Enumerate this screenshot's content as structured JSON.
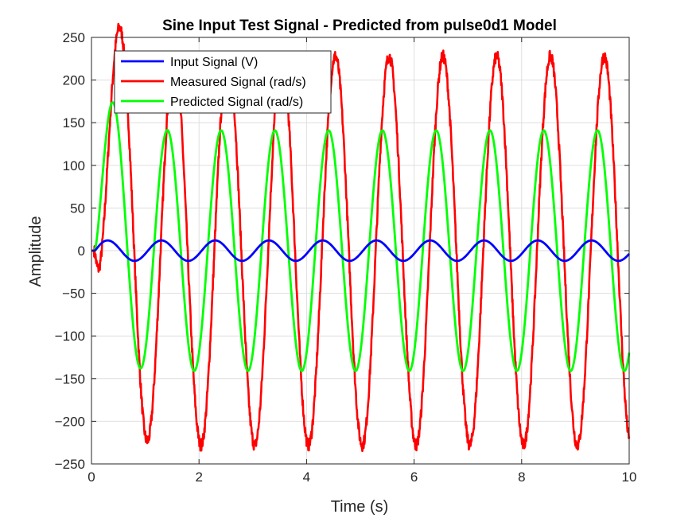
{
  "chart_data": {
    "type": "line",
    "title": "Sine Input Test Signal - Predicted from pulse0d1 Model",
    "xlabel": "Time (s)",
    "ylabel": "Amplitude",
    "xlim": [
      0,
      10
    ],
    "ylim": [
      -250,
      250
    ],
    "xticks": [
      0,
      2,
      4,
      6,
      8,
      10
    ],
    "yticks": [
      -250,
      -200,
      -150,
      -100,
      -50,
      0,
      50,
      100,
      150,
      200,
      250
    ],
    "grid": true,
    "legend_position": "top-left",
    "signal_frequency_hz": 1,
    "series": [
      {
        "name": "Input Signal (V)",
        "color": "#0000ff",
        "amplitude": 12,
        "phase_deg": 0,
        "start_time": 0.05
      },
      {
        "name": "Measured Signal (rad/s)",
        "color": "#ff0000",
        "amplitude": 228,
        "phase_deg": -85,
        "start_time": 0.05,
        "noisy": true
      },
      {
        "name": "Predicted Signal (rad/s)",
        "color": "#00ff00",
        "amplitude": 141,
        "phase_deg": -40,
        "start_time": 0.05,
        "initial_peak": 152
      }
    ]
  }
}
